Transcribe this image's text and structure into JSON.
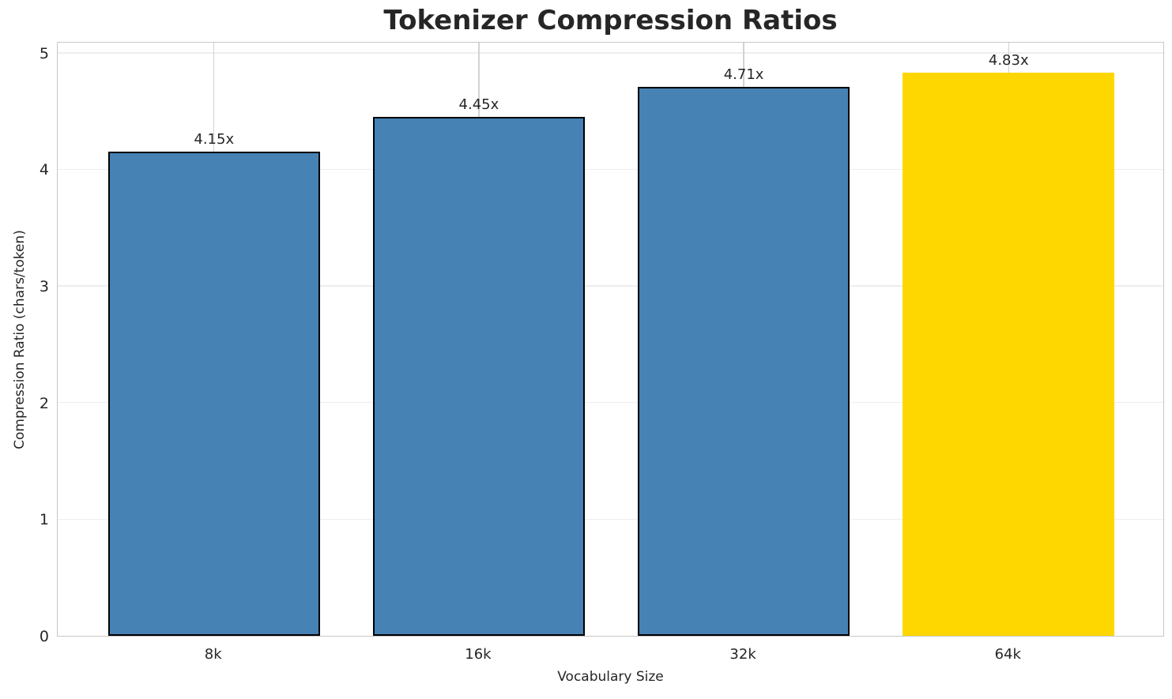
{
  "chart_data": {
    "type": "bar",
    "title": "Tokenizer Compression Ratios",
    "xlabel": "Vocabulary Size",
    "ylabel": "Compression Ratio (chars/token)",
    "categories": [
      "8k",
      "16k",
      "32k",
      "64k"
    ],
    "values": [
      4.15,
      4.45,
      4.71,
      4.83
    ],
    "bar_labels": [
      "4.15x",
      "4.45x",
      "4.71x",
      "4.83x"
    ],
    "yticks": [
      "0",
      "1",
      "2",
      "3",
      "4",
      "5"
    ],
    "ylim": [
      0,
      5.1
    ],
    "grid": true,
    "legend_position": "none",
    "bar_colors": [
      "#4682B4",
      "#4682B4",
      "#4682B4",
      "#FFD700"
    ],
    "edge_colors": [
      "#000000",
      "#000000",
      "#000000",
      "none"
    ],
    "highlight_index": 3
  },
  "colors": {
    "background": "#ffffff",
    "bar": "#4682B4",
    "highlight": "#FFD700",
    "bar_edge": "#000000",
    "text": "#262626",
    "spine": "#c8c8c8",
    "hgrid": "#ededed",
    "vgrid": "#d2d2d2"
  }
}
